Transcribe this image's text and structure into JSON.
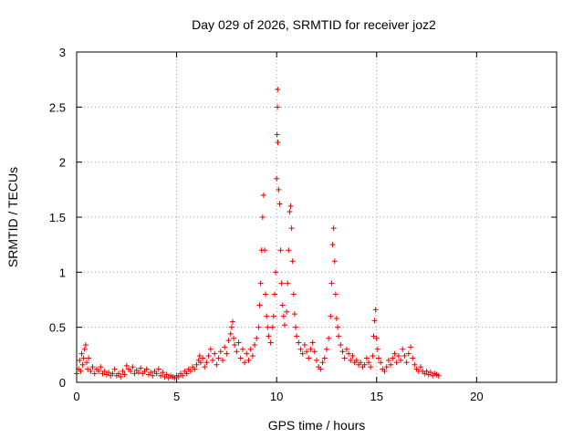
{
  "chart_data": {
    "type": "scatter",
    "title": "Day 029 of 2026, SRMTID for receiver joz2",
    "xlabel": "GPS time / hours",
    "ylabel": "SRMTID / TECUs",
    "xlim": [
      0,
      24
    ],
    "ylim": [
      0,
      3
    ],
    "xticks": [
      0,
      5,
      10,
      15,
      20
    ],
    "yticks": [
      0,
      0.5,
      1,
      1.5,
      2,
      2.5,
      3
    ],
    "xtick_labels": [
      "0",
      "5",
      "10",
      "15",
      "20"
    ],
    "ytick_labels": [
      "0",
      "0.5",
      "1",
      "1.5",
      "2",
      "2.5",
      "3"
    ],
    "grid": true,
    "marker": "plus",
    "series_color": "#e60000",
    "series": [
      {
        "name": "SRMTID",
        "points": [
          [
            0.0,
            0.08
          ],
          [
            0.1,
            0.12
          ],
          [
            0.15,
            0.2
          ],
          [
            0.2,
            0.1
          ],
          [
            0.25,
            0.26
          ],
          [
            0.3,
            0.16
          ],
          [
            0.35,
            0.22
          ],
          [
            0.4,
            0.3
          ],
          [
            0.45,
            0.34
          ],
          [
            0.5,
            0.18
          ],
          [
            0.55,
            0.12
          ],
          [
            0.6,
            0.22
          ],
          [
            0.7,
            0.1
          ],
          [
            0.8,
            0.14
          ],
          [
            0.9,
            0.08
          ],
          [
            1.0,
            0.12
          ],
          [
            1.1,
            0.1
          ],
          [
            1.2,
            0.14
          ],
          [
            1.3,
            0.08
          ],
          [
            1.4,
            0.1
          ],
          [
            1.5,
            0.07
          ],
          [
            1.6,
            0.09
          ],
          [
            1.7,
            0.06
          ],
          [
            1.8,
            0.08
          ],
          [
            1.9,
            0.12
          ],
          [
            2.0,
            0.06
          ],
          [
            2.1,
            0.08
          ],
          [
            2.2,
            0.05
          ],
          [
            2.3,
            0.1
          ],
          [
            2.4,
            0.07
          ],
          [
            2.5,
            0.15
          ],
          [
            2.6,
            0.12
          ],
          [
            2.7,
            0.1
          ],
          [
            2.8,
            0.14
          ],
          [
            2.9,
            0.08
          ],
          [
            3.0,
            0.11
          ],
          [
            3.1,
            0.09
          ],
          [
            3.2,
            0.13
          ],
          [
            3.3,
            0.08
          ],
          [
            3.4,
            0.1
          ],
          [
            3.5,
            0.12
          ],
          [
            3.6,
            0.07
          ],
          [
            3.7,
            0.09
          ],
          [
            3.8,
            0.06
          ],
          [
            3.9,
            0.1
          ],
          [
            4.0,
            0.08
          ],
          [
            4.1,
            0.12
          ],
          [
            4.2,
            0.06
          ],
          [
            4.3,
            0.09
          ],
          [
            4.4,
            0.05
          ],
          [
            4.5,
            0.07
          ],
          [
            4.6,
            0.04
          ],
          [
            4.7,
            0.06
          ],
          [
            4.8,
            0.05
          ],
          [
            4.9,
            0.04
          ],
          [
            5.0,
            0.06
          ],
          [
            5.1,
            0.05
          ],
          [
            5.2,
            0.08
          ],
          [
            5.3,
            0.06
          ],
          [
            5.4,
            0.1
          ],
          [
            5.5,
            0.08
          ],
          [
            5.6,
            0.12
          ],
          [
            5.7,
            0.1
          ],
          [
            5.8,
            0.14
          ],
          [
            5.9,
            0.12
          ],
          [
            6.0,
            0.16
          ],
          [
            6.1,
            0.2
          ],
          [
            6.15,
            0.24
          ],
          [
            6.2,
            0.18
          ],
          [
            6.3,
            0.22
          ],
          [
            6.4,
            0.14
          ],
          [
            6.5,
            0.18
          ],
          [
            6.6,
            0.24
          ],
          [
            6.7,
            0.3
          ],
          [
            6.8,
            0.2
          ],
          [
            6.9,
            0.26
          ],
          [
            7.0,
            0.16
          ],
          [
            7.1,
            0.22
          ],
          [
            7.2,
            0.28
          ],
          [
            7.3,
            0.2
          ],
          [
            7.4,
            0.32
          ],
          [
            7.5,
            0.26
          ],
          [
            7.6,
            0.38
          ],
          [
            7.7,
            0.44
          ],
          [
            7.75,
            0.5
          ],
          [
            7.8,
            0.55
          ],
          [
            7.85,
            0.4
          ],
          [
            7.9,
            0.34
          ],
          [
            8.0,
            0.28
          ],
          [
            8.1,
            0.36
          ],
          [
            8.2,
            0.22
          ],
          [
            8.3,
            0.3
          ],
          [
            8.4,
            0.18
          ],
          [
            8.5,
            0.26
          ],
          [
            8.6,
            0.2
          ],
          [
            8.7,
            0.3
          ],
          [
            8.8,
            0.24
          ],
          [
            8.9,
            0.34
          ],
          [
            9.0,
            0.4
          ],
          [
            9.1,
            0.5
          ],
          [
            9.15,
            0.7
          ],
          [
            9.2,
            0.9
          ],
          [
            9.25,
            1.2
          ],
          [
            9.3,
            1.5
          ],
          [
            9.35,
            1.7
          ],
          [
            9.4,
            1.2
          ],
          [
            9.45,
            0.8
          ],
          [
            9.5,
            0.6
          ],
          [
            9.55,
            0.5
          ],
          [
            9.6,
            0.42
          ],
          [
            9.7,
            0.36
          ],
          [
            9.8,
            0.5
          ],
          [
            9.85,
            0.6
          ],
          [
            9.9,
            0.8
          ],
          [
            9.95,
            1.0
          ],
          [
            10.0,
            1.85
          ],
          [
            10.02,
            2.25
          ],
          [
            10.04,
            2.5
          ],
          [
            10.05,
            2.66
          ],
          [
            10.06,
            2.18
          ],
          [
            10.1,
            1.75
          ],
          [
            10.15,
            1.62
          ],
          [
            10.2,
            1.2
          ],
          [
            10.25,
            0.9
          ],
          [
            10.3,
            0.7
          ],
          [
            10.35,
            0.6
          ],
          [
            10.4,
            0.52
          ],
          [
            10.5,
            0.64
          ],
          [
            10.55,
            0.9
          ],
          [
            10.6,
            1.2
          ],
          [
            10.65,
            1.55
          ],
          [
            10.7,
            1.6
          ],
          [
            10.75,
            1.4
          ],
          [
            10.8,
            1.1
          ],
          [
            10.85,
            0.8
          ],
          [
            10.9,
            0.62
          ],
          [
            10.95,
            0.5
          ],
          [
            11.0,
            0.42
          ],
          [
            11.1,
            0.36
          ],
          [
            11.2,
            0.3
          ],
          [
            11.3,
            0.26
          ],
          [
            11.4,
            0.34
          ],
          [
            11.5,
            0.28
          ],
          [
            11.6,
            0.22
          ],
          [
            11.7,
            0.3
          ],
          [
            11.8,
            0.36
          ],
          [
            11.9,
            0.28
          ],
          [
            12.0,
            0.2
          ],
          [
            12.1,
            0.14
          ],
          [
            12.2,
            0.12
          ],
          [
            12.3,
            0.18
          ],
          [
            12.4,
            0.22
          ],
          [
            12.5,
            0.3
          ],
          [
            12.6,
            0.4
          ],
          [
            12.7,
            0.6
          ],
          [
            12.75,
            0.9
          ],
          [
            12.8,
            1.25
          ],
          [
            12.85,
            1.4
          ],
          [
            12.9,
            1.1
          ],
          [
            12.95,
            0.8
          ],
          [
            13.0,
            0.58
          ],
          [
            13.05,
            0.5
          ],
          [
            13.1,
            0.42
          ],
          [
            13.2,
            0.34
          ],
          [
            13.3,
            0.28
          ],
          [
            13.4,
            0.22
          ],
          [
            13.5,
            0.3
          ],
          [
            13.6,
            0.26
          ],
          [
            13.7,
            0.2
          ],
          [
            13.8,
            0.24
          ],
          [
            13.9,
            0.18
          ],
          [
            14.0,
            0.2
          ],
          [
            14.1,
            0.16
          ],
          [
            14.2,
            0.18
          ],
          [
            14.3,
            0.14
          ],
          [
            14.4,
            0.16
          ],
          [
            14.5,
            0.22
          ],
          [
            14.6,
            0.18
          ],
          [
            14.7,
            0.14
          ],
          [
            14.8,
            0.24
          ],
          [
            14.85,
            0.42
          ],
          [
            14.9,
            0.56
          ],
          [
            14.95,
            0.66
          ],
          [
            15.0,
            0.4
          ],
          [
            15.05,
            0.3
          ],
          [
            15.1,
            0.22
          ],
          [
            15.2,
            0.18
          ],
          [
            15.3,
            0.12
          ],
          [
            15.4,
            0.1
          ],
          [
            15.5,
            0.14
          ],
          [
            15.6,
            0.2
          ],
          [
            15.7,
            0.16
          ],
          [
            15.8,
            0.22
          ],
          [
            15.9,
            0.26
          ],
          [
            16.0,
            0.18
          ],
          [
            16.1,
            0.24
          ],
          [
            16.2,
            0.2
          ],
          [
            16.3,
            0.3
          ],
          [
            16.4,
            0.24
          ],
          [
            16.5,
            0.18
          ],
          [
            16.6,
            0.26
          ],
          [
            16.7,
            0.32
          ],
          [
            16.8,
            0.22
          ],
          [
            16.9,
            0.16
          ],
          [
            17.0,
            0.12
          ],
          [
            17.1,
            0.1
          ],
          [
            17.2,
            0.14
          ],
          [
            17.3,
            0.1
          ],
          [
            17.4,
            0.08
          ],
          [
            17.5,
            0.1
          ],
          [
            17.6,
            0.07
          ],
          [
            17.7,
            0.09
          ],
          [
            17.8,
            0.06
          ],
          [
            17.9,
            0.08
          ],
          [
            18.0,
            0.07
          ],
          [
            18.1,
            0.06
          ]
        ]
      }
    ]
  }
}
